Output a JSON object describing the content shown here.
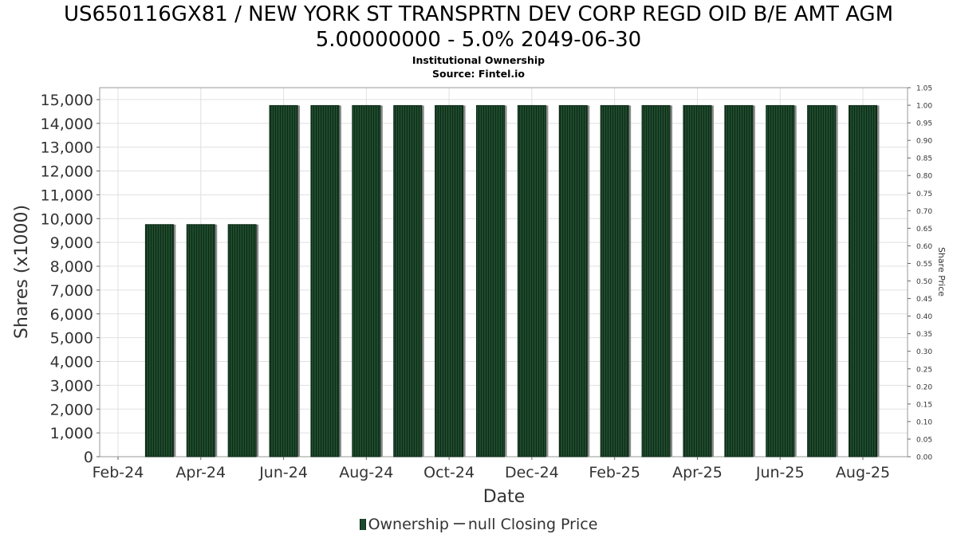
{
  "header": {
    "title_line1": "US650116GX81 / NEW YORK ST TRANSPRTN DEV CORP REGD OID B/E AMT AGM",
    "title_line2": "5.00000000 - 5.0% 2049-06-30",
    "subtitle": "Institutional Ownership",
    "source": "Source: Fintel.io"
  },
  "legend": {
    "ownership": "Ownership",
    "closing_price": "null Closing Price"
  },
  "colors": {
    "bar_fill": "#1e4a2c",
    "bar_stripe": "#0d2a17",
    "bar_shadow": "#8a8a8a",
    "grid": "#e0e0e0",
    "frame": "#999999"
  },
  "chart_data": {
    "type": "bar",
    "xlabel": "Date",
    "ylabel": "Shares (x1000)",
    "y2label": "Share Price",
    "ylim": [
      0,
      15500
    ],
    "y2lim": [
      0,
      1.05
    ],
    "yticks": [
      "0",
      "1,000",
      "2,000",
      "3,000",
      "4,000",
      "5,000",
      "6,000",
      "7,000",
      "8,000",
      "9,000",
      "10,000",
      "11,000",
      "12,000",
      "13,000",
      "14,000",
      "15,000"
    ],
    "y2ticks": [
      "0.00",
      "0.05",
      "0.10",
      "0.15",
      "0.20",
      "0.25",
      "0.30",
      "0.35",
      "0.40",
      "0.45",
      "0.50",
      "0.55",
      "0.60",
      "0.65",
      "0.70",
      "0.75",
      "0.80",
      "0.85",
      "0.90",
      "0.95",
      "1.00",
      "1.05"
    ],
    "xticks": [
      "Feb-24",
      "Apr-24",
      "Jun-24",
      "Aug-24",
      "Oct-24",
      "Dec-24",
      "Feb-25",
      "Apr-25",
      "Jun-25",
      "Aug-25"
    ],
    "grid": true,
    "legend_position": "bottom",
    "series": [
      {
        "name": "Ownership",
        "values": [
          9750,
          9750,
          9750,
          14750,
          14750,
          14750,
          14750,
          14750,
          14750,
          14750,
          14750,
          14750,
          14750,
          14750,
          14750,
          14750,
          14750,
          14750
        ]
      }
    ]
  }
}
